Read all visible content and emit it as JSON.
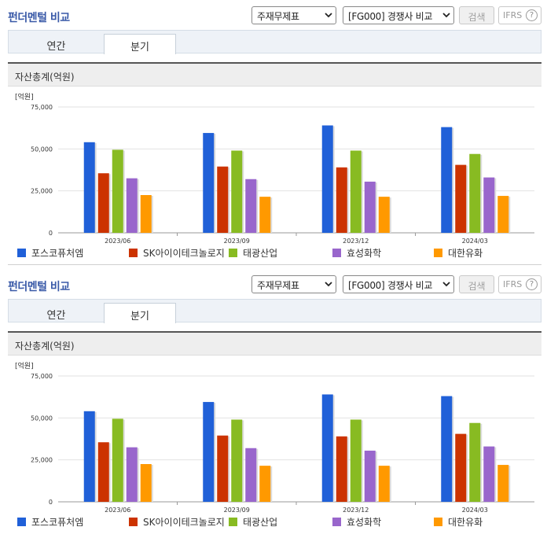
{
  "panels": [
    {
      "title": "펀더멘털 비교",
      "select_statement": "주재무제표",
      "select_compare": "[FG000] 경쟁사 비교",
      "search_label": "검색",
      "ifrs_label": "IFRS",
      "help_glyph": "?",
      "tabs": [
        "연간",
        "분기"
      ],
      "active_tab": "분기",
      "section_title": "자산총계(억원)"
    },
    {
      "title": "펀더멘털 비교",
      "select_statement": "주재무제표",
      "select_compare": "[FG000] 경쟁사 비교",
      "search_label": "검색",
      "ifrs_label": "IFRS",
      "help_glyph": "?",
      "tabs": [
        "연간",
        "분기"
      ],
      "active_tab": "분기",
      "section_title": "자산총계(억원)"
    }
  ],
  "colors": {
    "title": "#3a5aa8",
    "series": [
      "#2060d8",
      "#cc3300",
      "#88bb22",
      "#9966cc",
      "#ff9900"
    ]
  },
  "chart_data": [
    {
      "type": "bar",
      "unit_label": "[억원]",
      "categories": [
        "2023/06",
        "2023/09",
        "2023/12",
        "2024/03"
      ],
      "ylim": [
        0,
        75000
      ],
      "yticks": [
        "0",
        "25,000",
        "50,000",
        "75,000"
      ],
      "ytick_values": [
        0,
        25000,
        50000,
        75000
      ],
      "grid": true,
      "legend_position": "bottom",
      "series": [
        {
          "name": "포스코퓨처엠",
          "values": [
            54000,
            59500,
            64000,
            63000
          ]
        },
        {
          "name": "SK아이이테크놀로지",
          "values": [
            35500,
            39500,
            39000,
            40500
          ]
        },
        {
          "name": "태광산업",
          "values": [
            49500,
            49000,
            49000,
            47000
          ]
        },
        {
          "name": "효성화학",
          "values": [
            32500,
            32000,
            30500,
            33000
          ]
        },
        {
          "name": "대한유화",
          "values": [
            22500,
            21500,
            21500,
            22000
          ]
        }
      ]
    },
    {
      "type": "bar",
      "unit_label": "[억원]",
      "categories": [
        "2023/06",
        "2023/09",
        "2023/12",
        "2024/03"
      ],
      "ylim": [
        0,
        75000
      ],
      "yticks": [
        "0",
        "25,000",
        "50,000",
        "75,000"
      ],
      "ytick_values": [
        0,
        25000,
        50000,
        75000
      ],
      "grid": true,
      "legend_position": "bottom",
      "series": [
        {
          "name": "포스코퓨처엠",
          "values": [
            54000,
            59500,
            64000,
            63000
          ]
        },
        {
          "name": "SK아이이테크놀로지",
          "values": [
            35500,
            39500,
            39000,
            40500
          ]
        },
        {
          "name": "태광산업",
          "values": [
            49500,
            49000,
            49000,
            47000
          ]
        },
        {
          "name": "효성화학",
          "values": [
            32500,
            32000,
            30500,
            33000
          ]
        },
        {
          "name": "대한유화",
          "values": [
            22500,
            21500,
            21500,
            22000
          ]
        }
      ]
    }
  ]
}
